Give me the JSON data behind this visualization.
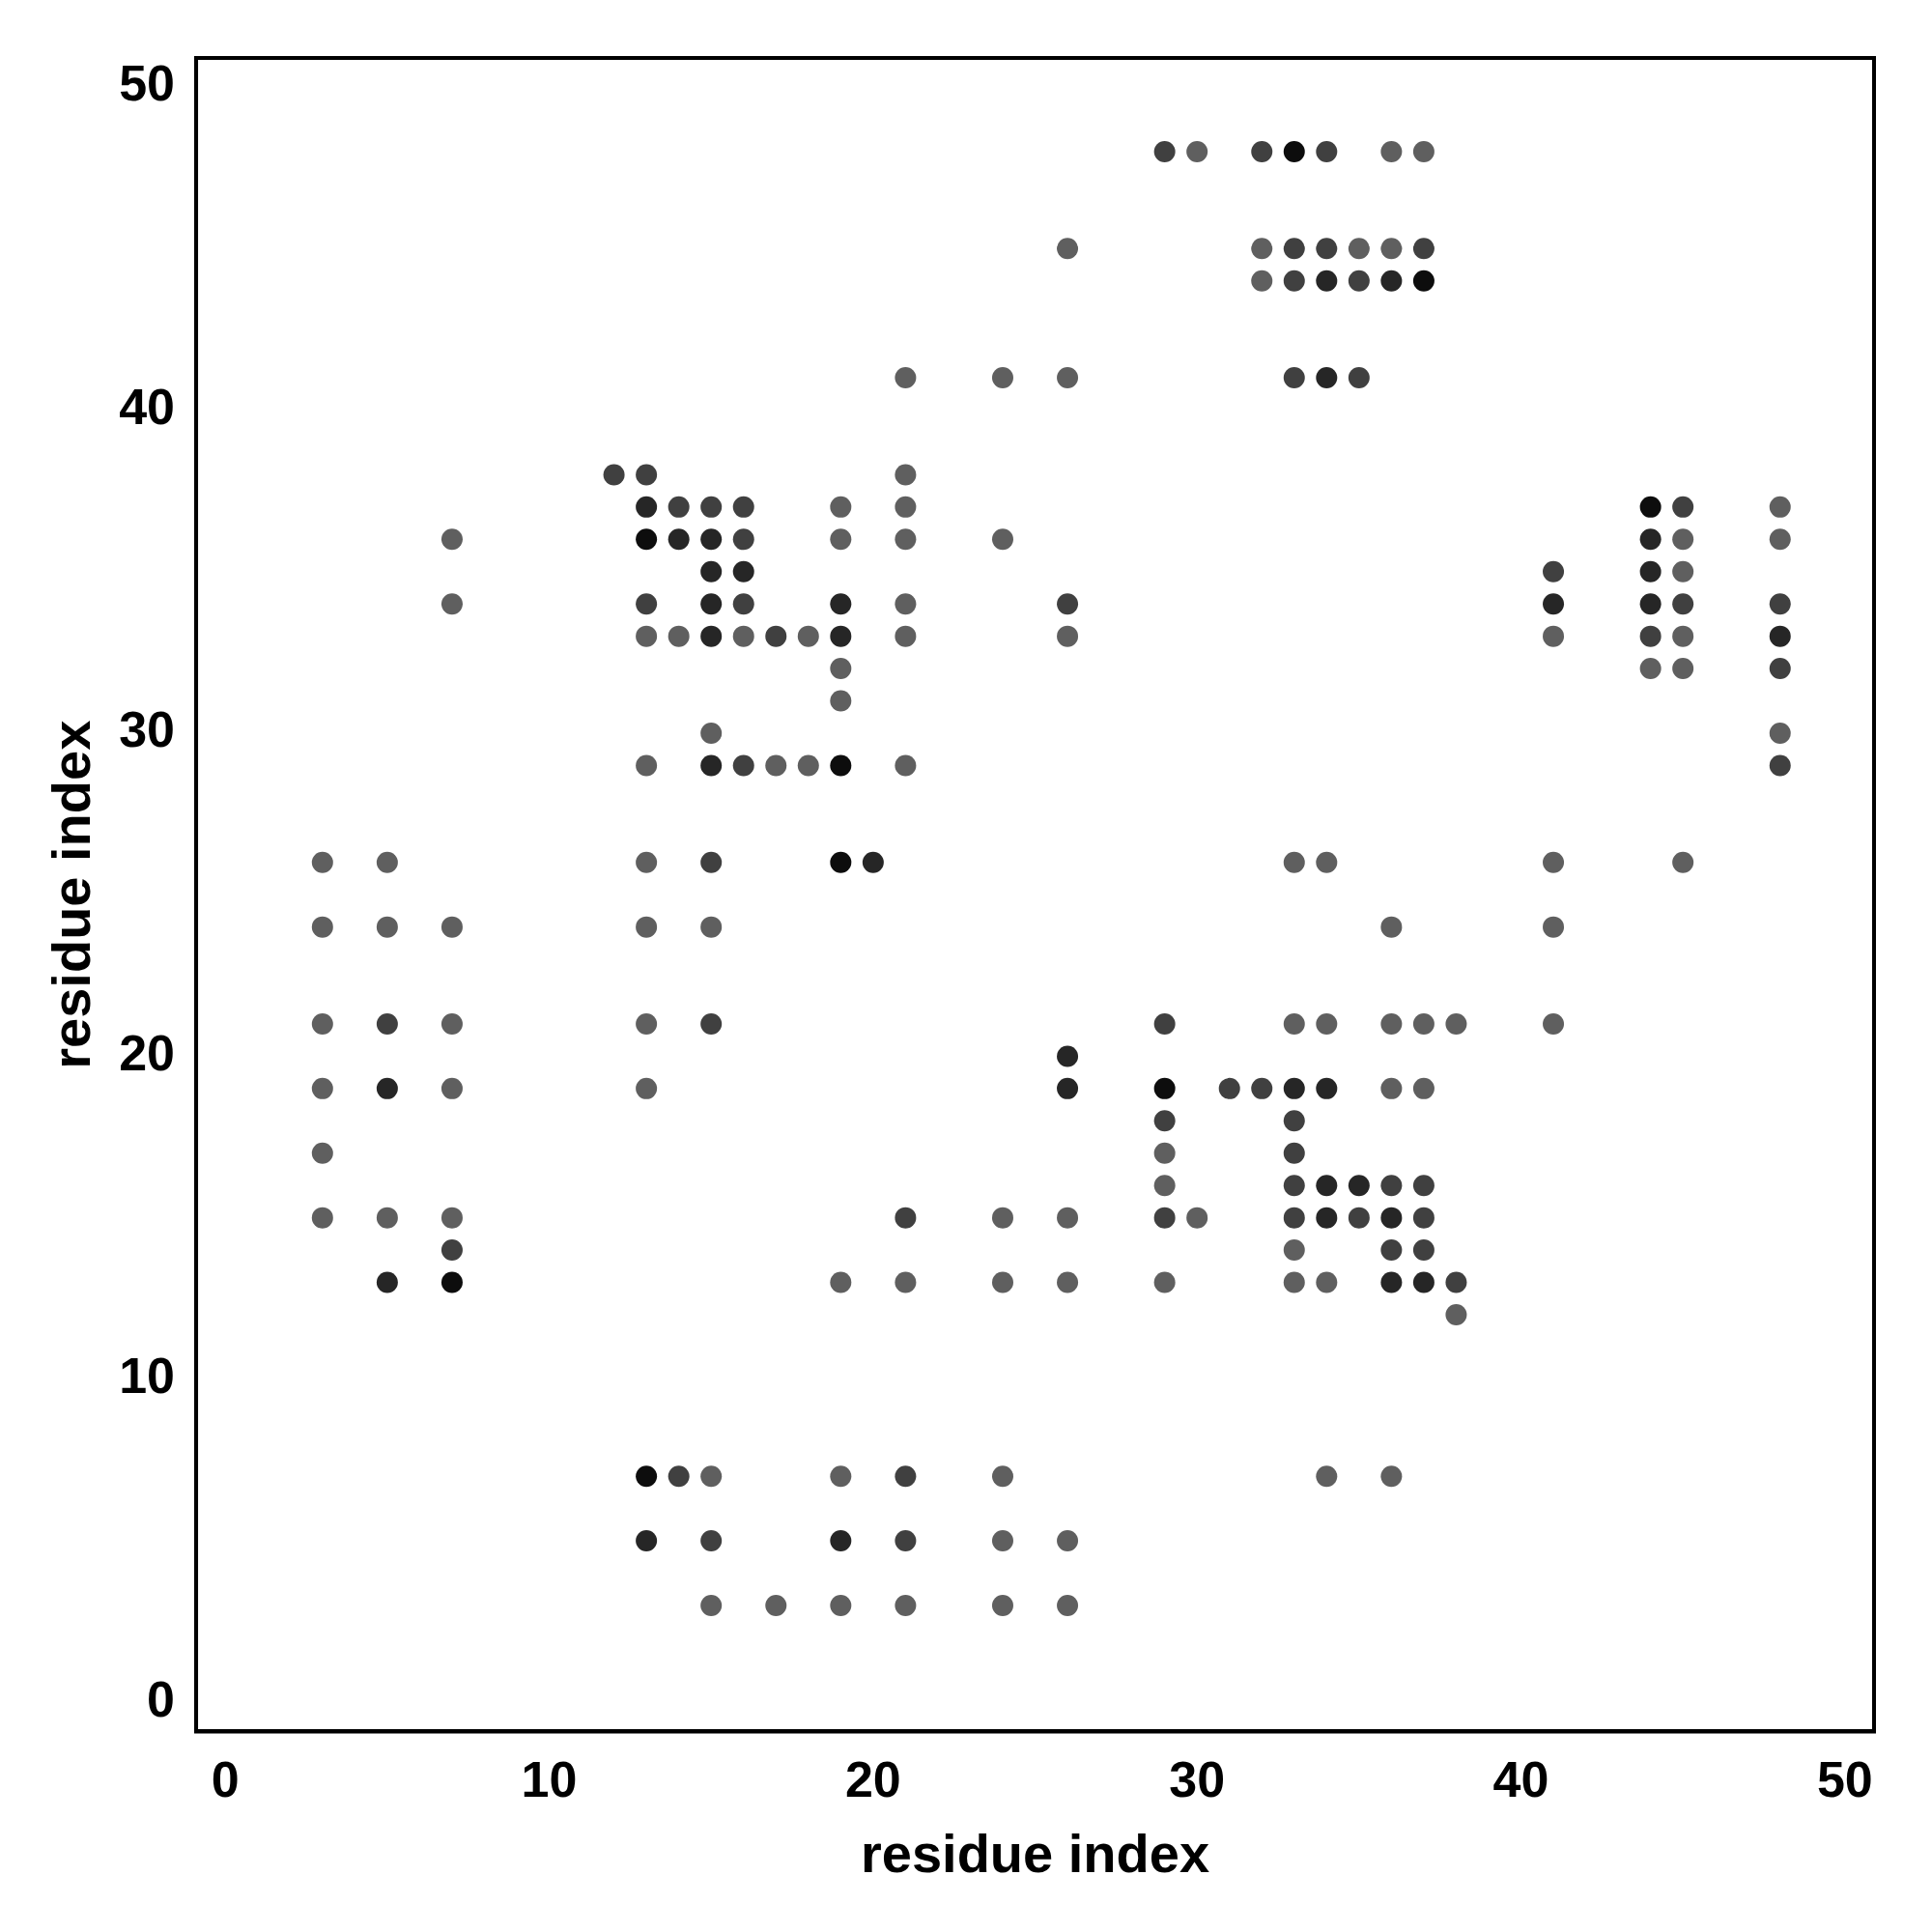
{
  "chart_data": {
    "type": "scatter",
    "xlabel": "residue index",
    "ylabel": "residue index",
    "xlim": [
      -0.9,
      50.9
    ],
    "ylim": [
      -0.9,
      50.9
    ],
    "xticks": [
      0,
      10,
      20,
      30,
      40,
      50
    ],
    "yticks": [
      0,
      10,
      20,
      30,
      40,
      50
    ],
    "grid": false,
    "legend": false,
    "marker": "circle",
    "series": [
      {
        "color": "#0d0d0d",
        "x": [
          33,
          37,
          13,
          19,
          19,
          44,
          29,
          7,
          13
        ],
        "values": [
          48,
          44,
          36,
          29,
          26,
          37,
          19,
          13,
          7
        ]
      },
      {
        "color": "#262626",
        "x": [
          34,
          36,
          34,
          13,
          14,
          15,
          15,
          16,
          15,
          15,
          19,
          19,
          15,
          20,
          44,
          44,
          44,
          41,
          48,
          26,
          26,
          33,
          34,
          34,
          35,
          34,
          36,
          36,
          37,
          5,
          5,
          13,
          19
        ],
        "values": [
          44,
          44,
          41,
          37,
          36,
          36,
          35,
          35,
          34,
          33,
          34,
          33,
          29,
          26,
          36,
          35,
          34,
          34,
          33,
          20,
          19,
          19,
          19,
          16,
          16,
          15,
          15,
          13,
          13,
          13,
          19,
          5,
          5
        ]
      },
      {
        "color": "#404040",
        "x": [
          29,
          32,
          34,
          37,
          34,
          33,
          33,
          35,
          13,
          14,
          15,
          16,
          16,
          16,
          13,
          17,
          16,
          45,
          45,
          41,
          44,
          48,
          48,
          48,
          15,
          15,
          5,
          29,
          33,
          35,
          36,
          37,
          38,
          7,
          21,
          33,
          14,
          21,
          21,
          15,
          29,
          29,
          33,
          33,
          32,
          31,
          35,
          33,
          26,
          36,
          37,
          37,
          12
        ],
        "values": [
          48,
          48,
          48,
          45,
          45,
          45,
          44,
          44,
          38,
          37,
          37,
          37,
          36,
          34,
          34,
          33,
          29,
          37,
          34,
          35,
          33,
          34,
          32,
          29,
          26,
          21,
          21,
          15,
          15,
          15,
          16,
          16,
          13,
          14,
          15,
          16,
          7,
          7,
          5,
          5,
          21,
          18,
          18,
          17,
          19,
          19,
          41,
          41,
          34,
          14,
          14,
          15,
          38
        ]
      },
      {
        "color": "#5f5f5f",
        "x": [
          30,
          36,
          37,
          26,
          32,
          35,
          36,
          32,
          21,
          24,
          26,
          21,
          19,
          21,
          48,
          7,
          19,
          21,
          24,
          45,
          48,
          45,
          7,
          21,
          13,
          14,
          16,
          18,
          21,
          26,
          41,
          45,
          19,
          44,
          45,
          19,
          15,
          48,
          13,
          17,
          18,
          21,
          3,
          5,
          13,
          33,
          34,
          41,
          45,
          3,
          5,
          7,
          13,
          15,
          36,
          41,
          3,
          7,
          13,
          33,
          34,
          36,
          37,
          38,
          41,
          3,
          7,
          13,
          36,
          37,
          3,
          29,
          29,
          3,
          5,
          7,
          24,
          26,
          30,
          33,
          19,
          21,
          24,
          26,
          29,
          33,
          34,
          38,
          15,
          19,
          24,
          34,
          36,
          24,
          26,
          15,
          17,
          19,
          21,
          24,
          26
        ],
        "values": [
          48,
          48,
          48,
          45,
          45,
          45,
          45,
          44,
          41,
          41,
          41,
          38,
          37,
          37,
          37,
          36,
          36,
          36,
          36,
          36,
          36,
          35,
          34,
          34,
          33,
          33,
          33,
          33,
          33,
          33,
          33,
          33,
          32,
          32,
          32,
          31,
          30,
          30,
          29,
          29,
          29,
          29,
          26,
          26,
          26,
          26,
          26,
          26,
          26,
          24,
          24,
          24,
          24,
          24,
          24,
          24,
          21,
          21,
          21,
          21,
          21,
          21,
          21,
          21,
          21,
          19,
          19,
          19,
          19,
          19,
          17,
          17,
          16,
          15,
          15,
          15,
          15,
          15,
          15,
          14,
          13,
          13,
          13,
          13,
          13,
          13,
          13,
          12,
          7,
          7,
          7,
          7,
          7,
          5,
          5,
          3,
          3,
          3,
          3,
          3,
          3
        ]
      }
    ]
  }
}
